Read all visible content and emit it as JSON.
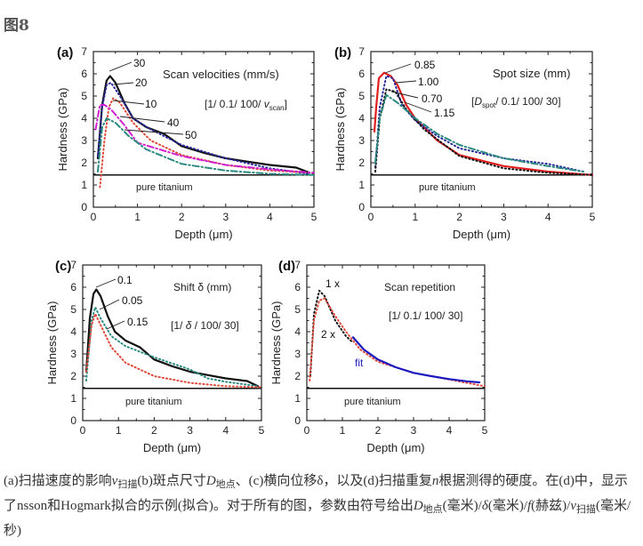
{
  "figure_title": "图8",
  "caption": [
    {
      "t": "(a)扫描速度的影响"
    },
    {
      "t": "v",
      "i": true
    },
    {
      "t": "扫描",
      "sub": true
    },
    {
      "t": "(b)斑点尺寸"
    },
    {
      "t": "D",
      "i": true
    },
    {
      "t": "地点",
      "sub": true
    },
    {
      "t": "、(c)横向位移δ，以及(d)扫描重复"
    },
    {
      "t": "n",
      "i": true
    },
    {
      "t": "根据测得的硬度。在(d)中，显示了nsson和Hogmark拟合的示例(拟合)。对于所有的图，参数由符号给出"
    },
    {
      "t": "D",
      "i": true
    },
    {
      "t": "地点",
      "sub": true
    },
    {
      "t": "(毫米)/"
    },
    {
      "t": "δ",
      "i": true
    },
    {
      "t": "(毫米)/"
    },
    {
      "t": "f",
      "i": true
    },
    {
      "t": "(赫兹)/"
    },
    {
      "t": "v",
      "i": true
    },
    {
      "t": "扫描",
      "sub": true
    },
    {
      "t": "(毫米/秒)"
    }
  ],
  "chart_data": [
    {
      "type": "line",
      "panel": "(a)",
      "title": "Scan velocities (mm/s)",
      "params": {
        "prefix": "[1/ 0.1/ 100/ ",
        "var": "v",
        "sub": "scan",
        "suffix": "]"
      },
      "xlabel": "Depth (μm)",
      "ylabel": "Hardness (GPa)",
      "xlim": [
        0,
        5
      ],
      "ylim": [
        0,
        7
      ],
      "xticks": [
        "0",
        "1",
        "2",
        "3",
        "4",
        "5"
      ],
      "yticks": [
        "0",
        "1",
        "2",
        "3",
        "4",
        "5",
        "6",
        "7"
      ],
      "reference": {
        "label": "pure titanium",
        "y": 1.45
      },
      "series": [
        {
          "name": "30",
          "color": "#111111",
          "style": "solid",
          "points": [
            [
              0.1,
              2.2
            ],
            [
              0.2,
              4.6
            ],
            [
              0.3,
              5.7
            ],
            [
              0.38,
              5.9
            ],
            [
              0.5,
              5.6
            ],
            [
              0.7,
              4.7
            ],
            [
              0.9,
              4.0
            ],
            [
              1.2,
              3.6
            ],
            [
              1.6,
              3.3
            ],
            [
              2,
              2.75
            ],
            [
              2.5,
              2.45
            ],
            [
              3,
              2.2
            ],
            [
              3.5,
              2.05
            ],
            [
              4,
              1.9
            ],
            [
              4.6,
              1.78
            ],
            [
              4.9,
              1.55
            ]
          ]
        },
        {
          "name": "20",
          "color": "#2a2a9a",
          "style": "dotted",
          "points": [
            [
              0.1,
              2.3
            ],
            [
              0.2,
              4.5
            ],
            [
              0.3,
              5.5
            ],
            [
              0.4,
              5.6
            ],
            [
              0.6,
              5.0
            ],
            [
              0.9,
              4.0
            ],
            [
              1.3,
              3.5
            ],
            [
              2,
              2.8
            ],
            [
              3,
              2.2
            ],
            [
              4,
              1.75
            ],
            [
              4.9,
              1.5
            ]
          ]
        },
        {
          "name": "10",
          "color": "#e0483a",
          "style": "dotted",
          "points": [
            [
              0.15,
              0.9
            ],
            [
              0.25,
              3.0
            ],
            [
              0.35,
              4.5
            ],
            [
              0.45,
              4.9
            ],
            [
              0.6,
              4.7
            ],
            [
              0.9,
              3.8
            ],
            [
              1.3,
              3.0
            ],
            [
              2,
              2.35
            ],
            [
              3,
              1.9
            ],
            [
              4,
              1.65
            ],
            [
              5,
              1.55
            ]
          ]
        },
        {
          "name": "40",
          "color": "#d020d0",
          "style": "dashdot",
          "points": [
            [
              0.05,
              3.5
            ],
            [
              0.15,
              4.6
            ],
            [
              0.25,
              4.6
            ],
            [
              0.4,
              4.4
            ],
            [
              0.7,
              3.7
            ],
            [
              1,
              2.9
            ],
            [
              1.5,
              2.6
            ],
            [
              2,
              2.3
            ],
            [
              3,
              1.9
            ],
            [
              4,
              1.7
            ],
            [
              5,
              1.55
            ]
          ]
        },
        {
          "name": "50",
          "color": "#2a8a80",
          "style": "dashdot",
          "points": [
            [
              0.1,
              1.6
            ],
            [
              0.2,
              3.6
            ],
            [
              0.3,
              4.0
            ],
            [
              0.5,
              3.8
            ],
            [
              0.8,
              3.2
            ],
            [
              1.2,
              2.6
            ],
            [
              2,
              1.95
            ],
            [
              3,
              1.65
            ],
            [
              4,
              1.5
            ],
            [
              5,
              1.45
            ]
          ]
        }
      ]
    },
    {
      "type": "line",
      "panel": "(b)",
      "title": "Spot size (mm)",
      "params": {
        "prefix": "[",
        "var": "D",
        "sub": "spot",
        "suffix": "/ 0.1/ 100/ 30]"
      },
      "xlabel": "Depth (μm)",
      "ylabel": "Hardness (GPa)",
      "xlim": [
        0,
        5
      ],
      "ylim": [
        0,
        7
      ],
      "xticks": [
        "0",
        "1",
        "2",
        "3",
        "4",
        "5"
      ],
      "yticks": [
        "0",
        "1",
        "2",
        "3",
        "4",
        "5",
        "6",
        "7"
      ],
      "reference": {
        "label": "pure titanium",
        "y": 1.45
      },
      "series": [
        {
          "name": "0.85",
          "color": "#e02020",
          "style": "solid",
          "points": [
            [
              0.08,
              3.4
            ],
            [
              0.12,
              4.5
            ],
            [
              0.18,
              5.8
            ],
            [
              0.3,
              6.05
            ],
            [
              0.45,
              5.9
            ],
            [
              0.6,
              5.5
            ],
            [
              0.8,
              4.6
            ],
            [
              1,
              4.0
            ],
            [
              1.5,
              3.0
            ],
            [
              2,
              2.35
            ],
            [
              3,
              1.85
            ],
            [
              4,
              1.6
            ],
            [
              5,
              1.45
            ]
          ]
        },
        {
          "name": "1.00",
          "color": "#2a2a9a",
          "style": "dotted",
          "points": [
            [
              0.1,
              1.8
            ],
            [
              0.2,
              4.5
            ],
            [
              0.35,
              5.9
            ],
            [
              0.5,
              5.8
            ],
            [
              0.7,
              4.6
            ],
            [
              1,
              3.9
            ],
            [
              1.5,
              3.2
            ],
            [
              2,
              2.65
            ],
            [
              3,
              2.2
            ],
            [
              4,
              1.95
            ],
            [
              4.8,
              1.6
            ]
          ]
        },
        {
          "name": "0.70",
          "color": "#111111",
          "style": "dotted",
          "points": [
            [
              0.1,
              1.6
            ],
            [
              0.2,
              4.0
            ],
            [
              0.35,
              5.3
            ],
            [
              0.55,
              5.2
            ],
            [
              0.8,
              4.4
            ],
            [
              1.2,
              3.5
            ],
            [
              2,
              2.3
            ],
            [
              3,
              1.75
            ],
            [
              4,
              1.55
            ],
            [
              5,
              1.45
            ]
          ]
        },
        {
          "name": "1.15",
          "color": "#2a8a80",
          "style": "dashdot",
          "points": [
            [
              0.1,
              2.0
            ],
            [
              0.2,
              4.0
            ],
            [
              0.35,
              5.05
            ],
            [
              0.6,
              4.7
            ],
            [
              1,
              4.0
            ],
            [
              1.5,
              3.3
            ],
            [
              2,
              2.8
            ],
            [
              3,
              2.2
            ],
            [
              4,
              1.85
            ],
            [
              4.8,
              1.6
            ]
          ]
        }
      ]
    },
    {
      "type": "line",
      "panel": "(c)",
      "title": "Shift δ (mm)",
      "params": {
        "prefix": "[1/ ",
        "var": "δ",
        "sub": "",
        "suffix": " / 100/ 30]"
      },
      "xlabel": "Depth (μm)",
      "ylabel": "Hardness (GPa)",
      "xlim": [
        0,
        5
      ],
      "ylim": [
        0,
        7
      ],
      "xticks": [
        "0",
        "1",
        "2",
        "3",
        "4",
        "5"
      ],
      "yticks": [
        "0",
        "1",
        "2",
        "3",
        "4",
        "5",
        "6",
        "7"
      ],
      "reference": {
        "label": "pure titanium",
        "y": 1.45
      },
      "series": [
        {
          "name": "0.1",
          "color": "#111111",
          "style": "solid",
          "points": [
            [
              0.1,
              2.2
            ],
            [
              0.2,
              4.6
            ],
            [
              0.3,
              5.7
            ],
            [
              0.38,
              5.9
            ],
            [
              0.5,
              5.6
            ],
            [
              0.7,
              4.7
            ],
            [
              0.9,
              4.0
            ],
            [
              1.2,
              3.6
            ],
            [
              1.6,
              3.3
            ],
            [
              2,
              2.75
            ],
            [
              2.5,
              2.45
            ],
            [
              3,
              2.2
            ],
            [
              3.5,
              2.05
            ],
            [
              4,
              1.9
            ],
            [
              4.6,
              1.78
            ],
            [
              4.9,
              1.55
            ]
          ]
        },
        {
          "name": "0.05",
          "color": "#2a8a80",
          "style": "dotted",
          "points": [
            [
              0.1,
              1.8
            ],
            [
              0.25,
              4.5
            ],
            [
              0.35,
              5.1
            ],
            [
              0.5,
              4.6
            ],
            [
              0.8,
              3.8
            ],
            [
              1.2,
              3.35
            ],
            [
              2,
              2.85
            ],
            [
              3,
              2.3
            ],
            [
              3.5,
              1.9
            ],
            [
              4,
              1.75
            ],
            [
              4.9,
              1.55
            ]
          ]
        },
        {
          "name": "0.15",
          "color": "#e0483a",
          "style": "dotted",
          "points": [
            [
              0.1,
              2.2
            ],
            [
              0.25,
              4.3
            ],
            [
              0.35,
              4.8
            ],
            [
              0.5,
              4.3
            ],
            [
              0.8,
              3.3
            ],
            [
              1.2,
              2.6
            ],
            [
              2,
              2.0
            ],
            [
              3,
              1.7
            ],
            [
              4,
              1.55
            ],
            [
              5,
              1.5
            ]
          ]
        }
      ]
    },
    {
      "type": "line",
      "panel": "(d)",
      "title": "Scan repetition",
      "params": {
        "prefix": "[1/ 0.1/ 100/ 30]",
        "var": "",
        "sub": "",
        "suffix": ""
      },
      "xlabel": "Depth (μm)",
      "ylabel": "Hardness (GPa)",
      "xlim": [
        0,
        5
      ],
      "ylim": [
        0,
        7
      ],
      "xticks": [
        "0",
        "1",
        "2",
        "3",
        "4",
        "5"
      ],
      "yticks": [
        "0",
        "1",
        "2",
        "3",
        "4",
        "5",
        "6",
        "7"
      ],
      "reference": {
        "label": "pure titanium",
        "y": 1.45
      },
      "series": [
        {
          "name": "1 x",
          "color": "#111111",
          "style": "dotted",
          "points": [
            [
              0.1,
              2.0
            ],
            [
              0.2,
              4.8
            ],
            [
              0.35,
              5.85
            ],
            [
              0.5,
              5.6
            ],
            [
              0.8,
              4.5
            ],
            [
              1.1,
              3.8
            ],
            [
              1.3,
              3.5
            ]
          ]
        },
        {
          "name": "2 x",
          "color": "#e0483a",
          "style": "dotted",
          "points": [
            [
              0.08,
              1.8
            ],
            [
              0.2,
              4.5
            ],
            [
              0.35,
              5.4
            ],
            [
              0.5,
              5.5
            ],
            [
              0.8,
              4.7
            ],
            [
              1.1,
              4.0
            ],
            [
              1.5,
              3.2
            ],
            [
              2,
              2.65
            ],
            [
              3,
              2.15
            ],
            [
              4,
              1.85
            ],
            [
              5,
              1.55
            ]
          ]
        },
        {
          "name": "fit",
          "color": "#1a1ac0",
          "style": "solid",
          "points": [
            [
              1.3,
              3.75
            ],
            [
              1.6,
              3.2
            ],
            [
              2,
              2.75
            ],
            [
              2.5,
              2.4
            ],
            [
              3,
              2.15
            ],
            [
              3.5,
              2.0
            ],
            [
              4,
              1.87
            ],
            [
              4.5,
              1.77
            ],
            [
              4.85,
              1.72
            ]
          ]
        }
      ]
    }
  ]
}
